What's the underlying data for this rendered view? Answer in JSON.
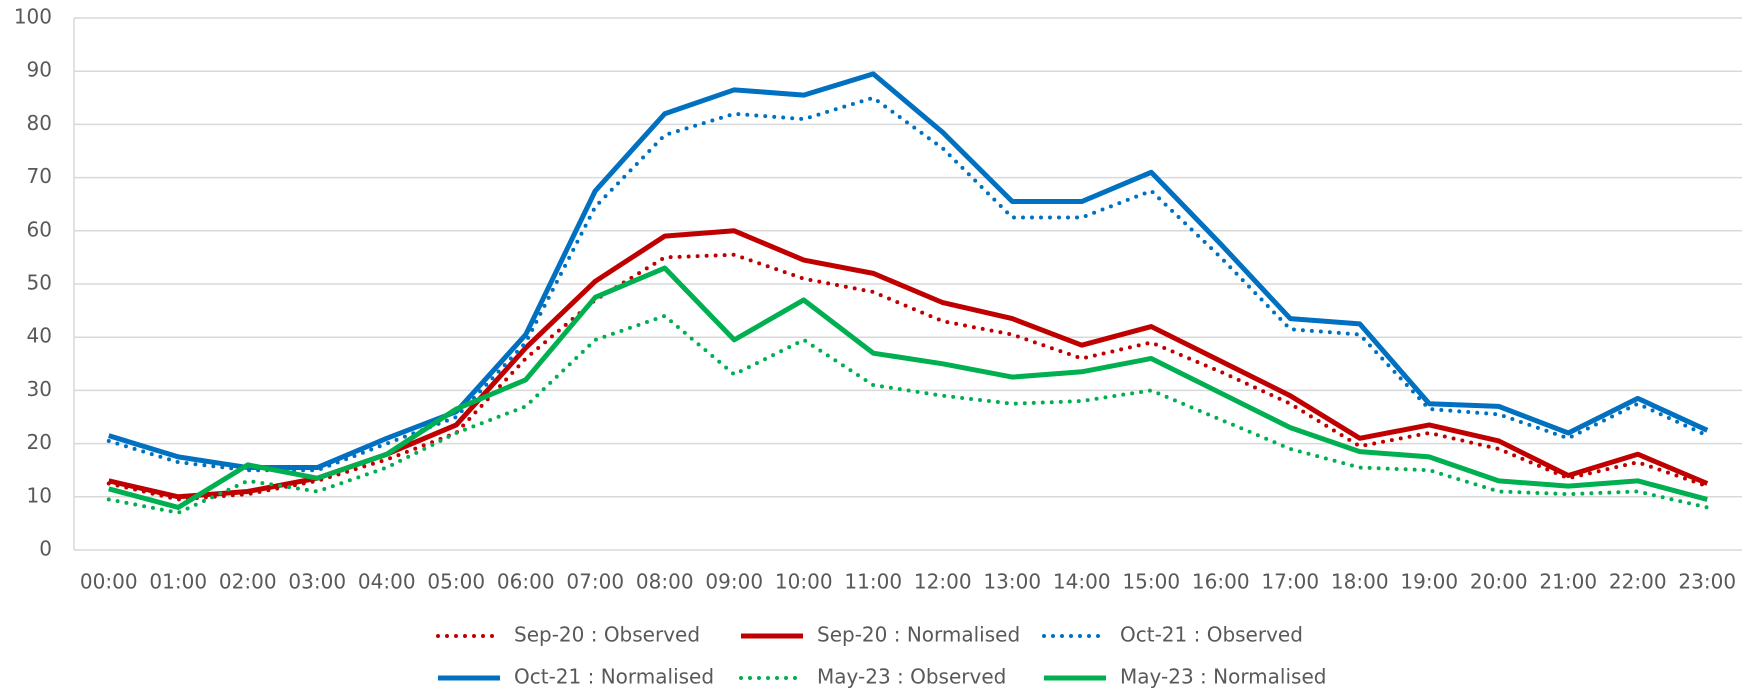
{
  "chart_data": {
    "type": "line",
    "categories": [
      "00:00",
      "01:00",
      "02:00",
      "03:00",
      "04:00",
      "05:00",
      "06:00",
      "07:00",
      "08:00",
      "09:00",
      "10:00",
      "11:00",
      "12:00",
      "13:00",
      "14:00",
      "15:00",
      "16:00",
      "17:00",
      "18:00",
      "19:00",
      "20:00",
      "21:00",
      "22:00",
      "23:00"
    ],
    "series": [
      {
        "name": "Sep-20 : Observed",
        "color": "#c00000",
        "dash": "dotted",
        "values": [
          12.5,
          9.5,
          10.5,
          13,
          17,
          22,
          36,
          47,
          55,
          55.5,
          51,
          48.5,
          43,
          40.5,
          36,
          39,
          33.5,
          27.5,
          19.5,
          22,
          19,
          13.5,
          16.5,
          12
        ]
      },
      {
        "name": "Sep-20 : Normalised",
        "color": "#c00000",
        "dash": "solid",
        "values": [
          13,
          10,
          11,
          13.5,
          18,
          23.5,
          38,
          50.5,
          59,
          60,
          54.5,
          52,
          46.5,
          43.5,
          38.5,
          42,
          35.5,
          29,
          21,
          23.5,
          20.5,
          14,
          18,
          12.5
        ]
      },
      {
        "name": "Oct-21 : Observed",
        "color": "#0070c0",
        "dash": "dotted",
        "values": [
          20.5,
          16.5,
          15,
          15,
          20,
          25,
          39,
          64.5,
          78,
          82,
          81,
          85,
          75.5,
          62.5,
          62.5,
          67.5,
          55,
          41.5,
          40.5,
          26.5,
          25.5,
          21,
          27.5,
          21.5
        ]
      },
      {
        "name": "Oct-21 : Normalised",
        "color": "#0070c0",
        "dash": "solid",
        "values": [
          21.5,
          17.5,
          15.5,
          15.5,
          21,
          26,
          40.5,
          67.5,
          82,
          86.5,
          85.5,
          89.5,
          78.5,
          65.5,
          65.5,
          71,
          57.5,
          43.5,
          42.5,
          27.5,
          27,
          22,
          28.5,
          22.5
        ]
      },
      {
        "name": "May-23 : Observed",
        "color": "#00b050",
        "dash": "dotted",
        "values": [
          9.5,
          7,
          13,
          11,
          15.5,
          22,
          27,
          39.5,
          44,
          33,
          39.5,
          31,
          29,
          27.5,
          28,
          30,
          24.5,
          19,
          15.5,
          15,
          11,
          10.5,
          11,
          8
        ]
      },
      {
        "name": "May-23 : Normalised",
        "color": "#00b050",
        "dash": "solid",
        "values": [
          11.5,
          8,
          16,
          13.5,
          18,
          26.5,
          32,
          47.5,
          53,
          39.5,
          47,
          37,
          35,
          32.5,
          33.5,
          36,
          29.5,
          23,
          18.5,
          17.5,
          13,
          12,
          13,
          9.5
        ]
      }
    ],
    "ylim": [
      0,
      100
    ],
    "yticks": [
      0,
      10,
      20,
      30,
      40,
      50,
      60,
      70,
      80,
      90,
      100
    ],
    "grid": true,
    "legend": "bottom"
  }
}
